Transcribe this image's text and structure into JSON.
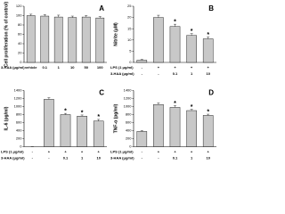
{
  "chart_data": [
    {
      "type": "bar",
      "panel": "A",
      "ylabel": "Cell proliferation (% of control)",
      "rows": [
        {
          "name": "3-HAA (μg/ml)",
          "labels": [
            "vehicle",
            "0.1",
            "1",
            "10",
            "50",
            "100"
          ]
        }
      ],
      "values": [
        100,
        99,
        97,
        96,
        97,
        95
      ],
      "errors": [
        3,
        3,
        4,
        3,
        3,
        3
      ],
      "markers": [
        null,
        null,
        null,
        null,
        null,
        null
      ],
      "color": "#c8c8c8",
      "ylim": [
        0,
        120
      ],
      "yticks": [
        0,
        20,
        40,
        60,
        80,
        100,
        120
      ]
    },
    {
      "type": "bar",
      "panel": "B",
      "ylabel": "Nitrite (μM)",
      "rows": [
        {
          "name": "LPS (1 μg/ml)",
          "labels": [
            "-",
            "+",
            "+",
            "+",
            "+"
          ]
        },
        {
          "name": "3-HAA (μg/ml)",
          "labels": [
            "-",
            "-",
            "0.1",
            "1",
            "10"
          ]
        }
      ],
      "values": [
        1,
        20,
        16,
        12,
        10.5
      ],
      "errors": [
        0.3,
        1,
        1,
        0.8,
        0.8
      ],
      "markers": [
        null,
        null,
        "*",
        "*",
        "*"
      ],
      "color": "#c8c8c8",
      "ylim": [
        0,
        25
      ],
      "yticks": [
        0,
        5,
        10,
        15,
        20,
        25
      ]
    },
    {
      "type": "bar",
      "panel": "C",
      "ylabel": "IL-6 (pg/ml)",
      "rows": [
        {
          "name": "LPS (1 μg/ml)",
          "labels": [
            "-",
            "+",
            "+",
            "+",
            "+"
          ]
        },
        {
          "name": "3-HAA (μg/ml)",
          "labels": [
            "-",
            "-",
            "0.1",
            "1",
            "10"
          ]
        }
      ],
      "values": [
        0,
        1180,
        800,
        760,
        640
      ],
      "errors": [
        0,
        40,
        30,
        30,
        40
      ],
      "markers": [
        null,
        null,
        "*",
        "*",
        "*"
      ],
      "color": "#c8c8c8",
      "ylim": [
        0,
        1400
      ],
      "yticks": [
        0,
        200,
        400,
        600,
        800,
        1000,
        1200,
        1400
      ]
    },
    {
      "type": "bar",
      "panel": "D",
      "ylabel": "TNF-α (pg/ml)",
      "rows": [
        {
          "name": "LPS (1 μg/ml)",
          "labels": [
            "-",
            "+",
            "+",
            "+",
            "+"
          ]
        },
        {
          "name": "3-HAA (μg/ml)",
          "labels": [
            "-",
            "-",
            "0.1",
            "1",
            "10"
          ]
        }
      ],
      "values": [
        380,
        1050,
        980,
        900,
        780
      ],
      "errors": [
        20,
        40,
        40,
        30,
        30
      ],
      "markers": [
        null,
        null,
        "*",
        "*",
        "*"
      ],
      "color": "#c8c8c8",
      "ylim": [
        0,
        1400
      ],
      "yticks": [
        0,
        200,
        400,
        600,
        800,
        1000,
        1200,
        1400
      ]
    }
  ]
}
